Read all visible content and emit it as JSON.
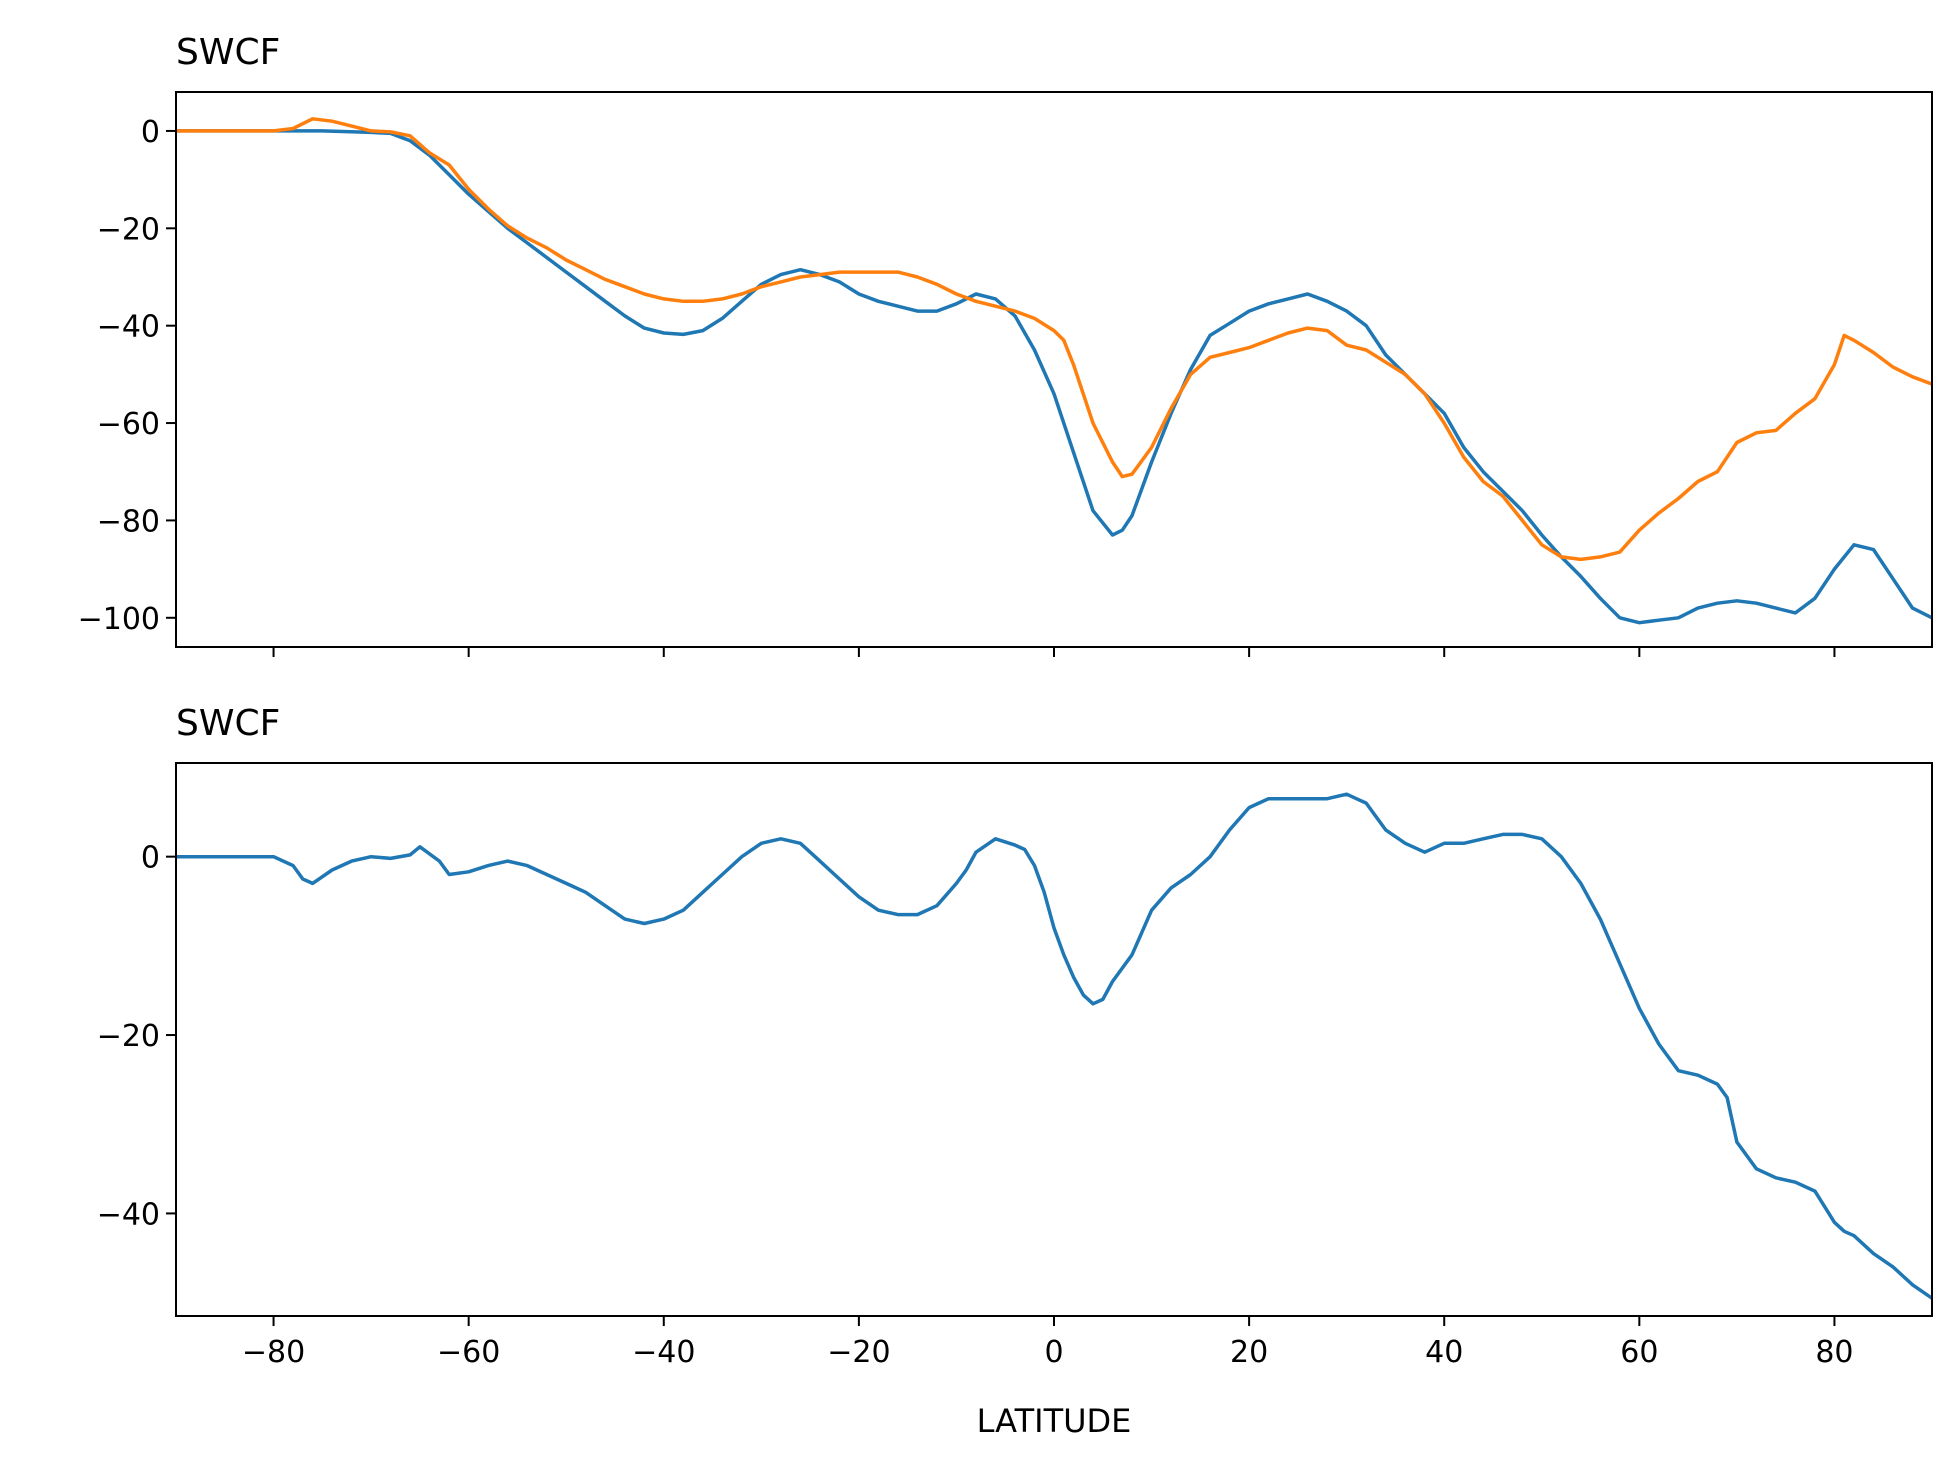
{
  "figure": {
    "xlabel": "LATITUDE"
  },
  "chart_data": [
    {
      "type": "line",
      "title": "SWCF",
      "xlabel": "",
      "ylabel": "",
      "xlim": [
        -90,
        90
      ],
      "ylim": [
        -106,
        8
      ],
      "xticks": [
        -80,
        -60,
        -40,
        -20,
        0,
        20,
        40,
        60,
        80
      ],
      "yticks": [
        0,
        -20,
        -40,
        -60,
        -80,
        -100
      ],
      "show_xtick_labels": false,
      "grid": false,
      "series": [
        {
          "color": "#1f77b4",
          "x": [
            -90,
            -85,
            -80,
            -75,
            -70,
            -68,
            -66,
            -64,
            -62,
            -60,
            -58,
            -56,
            -54,
            -52,
            -50,
            -48,
            -46,
            -44,
            -42,
            -40,
            -38,
            -36,
            -34,
            -32,
            -30,
            -28,
            -26,
            -24,
            -22,
            -20,
            -18,
            -16,
            -14,
            -12,
            -10,
            -8,
            -6,
            -4,
            -2,
            0,
            2,
            4,
            6,
            7,
            8,
            10,
            12,
            14,
            16,
            18,
            20,
            22,
            24,
            26,
            28,
            30,
            32,
            34,
            36,
            38,
            40,
            42,
            44,
            46,
            48,
            50,
            52,
            54,
            56,
            58,
            60,
            62,
            64,
            66,
            68,
            70,
            72,
            74,
            76,
            78,
            80,
            82,
            84,
            86,
            88,
            90
          ],
          "y": [
            0,
            0,
            0,
            0,
            -0.3,
            -0.5,
            -2,
            -5,
            -9,
            -13,
            -16.5,
            -20,
            -23,
            -26,
            -29,
            -32,
            -35,
            -38,
            -40.5,
            -41.5,
            -41.8,
            -41,
            -38.5,
            -35,
            -31.5,
            -29.5,
            -28.5,
            -29.5,
            -31,
            -33.5,
            -35,
            -36,
            -37,
            -37,
            -35.5,
            -33.5,
            -34.5,
            -38,
            -45,
            -54,
            -66,
            -78,
            -83,
            -82,
            -79,
            -68,
            -58,
            -49,
            -42,
            -39.5,
            -37,
            -35.5,
            -34.5,
            -33.5,
            -35,
            -37,
            -40,
            -46,
            -50,
            -54,
            -58,
            -65,
            -70,
            -74,
            -78,
            -83,
            -87.5,
            -91.5,
            -96,
            -100,
            -101,
            -100.5,
            -100,
            -98,
            -97,
            -96.5,
            -97,
            -98,
            -99,
            -96,
            -90,
            -85,
            -86,
            -92,
            -98,
            -100
          ]
        },
        {
          "color": "#ff7f0e",
          "x": [
            -90,
            -85,
            -80,
            -78,
            -76,
            -74,
            -72,
            -70,
            -68,
            -66,
            -64,
            -62,
            -60,
            -58,
            -56,
            -54,
            -52,
            -50,
            -48,
            -46,
            -44,
            -42,
            -40,
            -38,
            -36,
            -34,
            -32,
            -30,
            -28,
            -26,
            -24,
            -22,
            -20,
            -18,
            -16,
            -14,
            -12,
            -10,
            -8,
            -6,
            -4,
            -2,
            0,
            1,
            2,
            4,
            6,
            7,
            8,
            10,
            12,
            14,
            16,
            18,
            20,
            22,
            24,
            26,
            28,
            30,
            32,
            34,
            36,
            38,
            40,
            42,
            44,
            46,
            48,
            50,
            52,
            54,
            56,
            58,
            60,
            62,
            64,
            66,
            68,
            70,
            72,
            74,
            76,
            78,
            80,
            81,
            82,
            84,
            86,
            88,
            90
          ],
          "y": [
            0,
            0,
            0,
            0.5,
            2.5,
            2,
            1,
            0,
            -0.2,
            -1,
            -4.5,
            -7,
            -12,
            -16,
            -19.5,
            -22,
            -24,
            -26.5,
            -28.5,
            -30.5,
            -32,
            -33.5,
            -34.5,
            -35,
            -35,
            -34.5,
            -33.5,
            -32,
            -31,
            -30,
            -29.5,
            -29,
            -29,
            -29,
            -29,
            -30,
            -31.5,
            -33.5,
            -35,
            -36,
            -37,
            -38.5,
            -41,
            -43,
            -48,
            -60,
            -68,
            -71,
            -70.5,
            -65,
            -57,
            -50,
            -46.5,
            -45.5,
            -44.5,
            -43,
            -41.5,
            -40.5,
            -41,
            -44,
            -45,
            -47.5,
            -50,
            -54,
            -60,
            -67,
            -72,
            -75,
            -80,
            -85,
            -87.5,
            -88,
            -87.5,
            -86.5,
            -82,
            -78.5,
            -75.5,
            -72,
            -70,
            -64,
            -62,
            -61.5,
            -58,
            -55,
            -48,
            -42,
            -43,
            -45.5,
            -48.5,
            -50.5,
            -52
          ]
        }
      ]
    },
    {
      "type": "line",
      "title": "SWCF",
      "xlabel": "LATITUDE",
      "ylabel": "",
      "xlim": [
        -90,
        90
      ],
      "ylim": [
        -51.5,
        10.5
      ],
      "xticks": [
        -80,
        -60,
        -40,
        -20,
        0,
        20,
        40,
        60,
        80
      ],
      "yticks": [
        0,
        -20,
        -40
      ],
      "show_xtick_labels": true,
      "grid": false,
      "series": [
        {
          "color": "#1f77b4",
          "x": [
            -90,
            -85,
            -80,
            -78,
            -77,
            -76,
            -74,
            -72,
            -70,
            -68,
            -66,
            -65,
            -63,
            -62,
            -60,
            -58,
            -56,
            -54,
            -52,
            -50,
            -48,
            -46,
            -44,
            -42,
            -40,
            -38,
            -36,
            -34,
            -32,
            -30,
            -28,
            -26,
            -24,
            -22,
            -20,
            -18,
            -16,
            -14,
            -12,
            -10,
            -9,
            -8,
            -6,
            -4,
            -3,
            -2,
            -1,
            0,
            1,
            2,
            3,
            4,
            5,
            6,
            8,
            10,
            12,
            14,
            16,
            18,
            20,
            21,
            22,
            24,
            26,
            28,
            30,
            31,
            32,
            33,
            34,
            36,
            38,
            40,
            42,
            44,
            46,
            48,
            50,
            52,
            54,
            56,
            58,
            60,
            62,
            64,
            66,
            68,
            69,
            70,
            72,
            74,
            76,
            78,
            80,
            81,
            82,
            84,
            86,
            88,
            90
          ],
          "y": [
            0,
            0,
            0,
            -1,
            -2.5,
            -3,
            -1.5,
            -0.5,
            0,
            -0.2,
            0.2,
            1.1,
            -0.5,
            -2,
            -1.7,
            -1,
            -0.5,
            -1,
            -2,
            -3,
            -4,
            -5.5,
            -7,
            -7.5,
            -7,
            -6,
            -4,
            -2,
            0,
            1.5,
            2,
            1.5,
            -0.5,
            -2.5,
            -4.5,
            -6,
            -6.5,
            -6.5,
            -5.5,
            -3,
            -1.5,
            0.5,
            2,
            1.3,
            0.8,
            -1,
            -4,
            -8,
            -11,
            -13.5,
            -15.5,
            -16.5,
            -16,
            -14,
            -11,
            -6,
            -3.5,
            -2,
            0,
            3,
            5.5,
            6,
            6.5,
            6.5,
            6.5,
            6.5,
            7,
            6.5,
            6,
            4.5,
            3,
            1.5,
            0.5,
            1.5,
            1.5,
            2,
            2.5,
            2.5,
            2,
            0,
            -3,
            -7,
            -12,
            -17,
            -21,
            -24,
            -24.5,
            -25.5,
            -27,
            -32,
            -35,
            -36,
            -36.5,
            -37.5,
            -41,
            -42,
            -42.5,
            -44.5,
            -46,
            -48,
            -49.5
          ]
        }
      ]
    }
  ]
}
